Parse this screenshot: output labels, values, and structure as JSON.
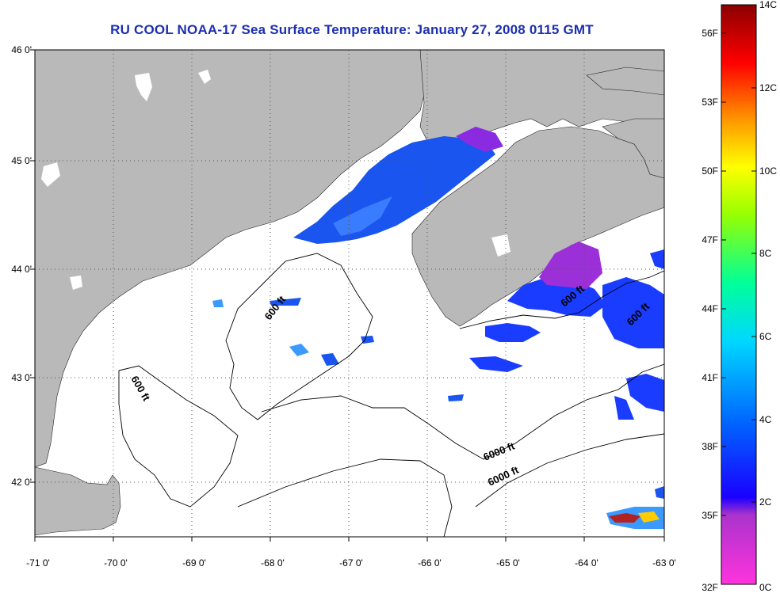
{
  "title": "RU COOL  NOAA-17  Sea Surface Temperature:  January 27, 2008 0115 GMT",
  "map": {
    "lat_ticks": [
      "46 0'",
      "45 0'",
      "44 0'",
      "43 0'",
      "42 0'"
    ],
    "lon_ticks": [
      "-71 0'",
      "-70 0'",
      "-69 0'",
      "-68 0'",
      "-67 0'",
      "-66 0'",
      "-65 0'",
      "-64 0'",
      "-63 0'"
    ],
    "lat_range": [
      41.5,
      46.0
    ],
    "lon_range": [
      -71.0,
      -63.0
    ],
    "grid": "dotted",
    "contour_labels": [
      "600 ft",
      "600 ft",
      "600 ft",
      "600 ft",
      "6000 ft"
    ],
    "colors": {
      "land": "#b9b9b9",
      "water": "#ffffff",
      "title": "#1c2fb0"
    }
  },
  "colorbar": {
    "fahrenheit_ticks": [
      "56F",
      "53F",
      "50F",
      "47F",
      "44F",
      "41F",
      "38F",
      "35F",
      "32F"
    ],
    "celsius_ticks": [
      "14C",
      "12C",
      "10C",
      "8C",
      "6C",
      "4C",
      "2C",
      "0C"
    ],
    "range_c": [
      0,
      14
    ],
    "colors": [
      "#ff33cc",
      "#9933cc",
      "#2200ff",
      "#0066ff",
      "#00ccff",
      "#00ff99",
      "#99ff00",
      "#ffff00",
      "#ff9900",
      "#ff0000",
      "#8b0000"
    ]
  }
}
